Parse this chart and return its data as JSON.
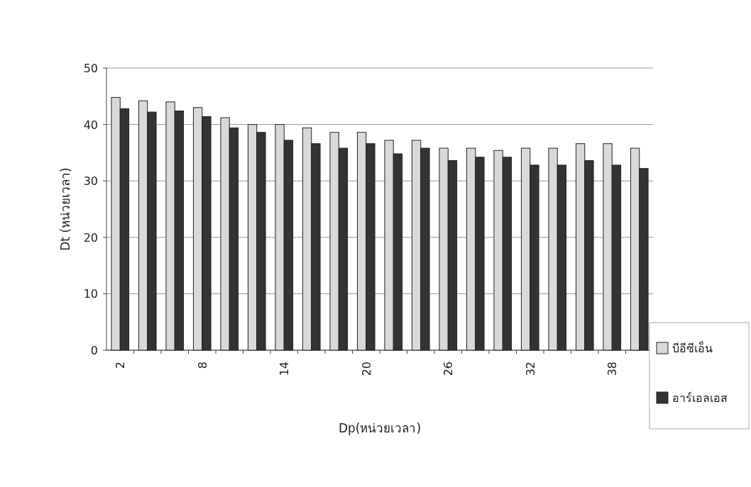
{
  "chart_data": {
    "type": "bar",
    "xlabel": "Dp(หน่วยเวลา)",
    "ylabel": "Dt (หน่วยเวลา)",
    "categories": [
      "2",
      null,
      null,
      "8",
      null,
      null,
      "14",
      null,
      null,
      "20",
      null,
      null,
      "26",
      null,
      null,
      "32",
      null,
      null,
      "38",
      null
    ],
    "series": [
      {
        "name": "บีอีซีเอ็น",
        "color": "#d9d9d9",
        "values": [
          44.8,
          44.2,
          44.0,
          43.0,
          41.2,
          40.0,
          40.0,
          39.4,
          38.6,
          38.6,
          37.2,
          37.2,
          35.8,
          35.8,
          35.4,
          35.8,
          35.8,
          36.6,
          36.6,
          35.8
        ]
      },
      {
        "name": "อาร์เอลเอส",
        "color": "#333333",
        "values": [
          42.8,
          42.2,
          42.4,
          41.4,
          39.4,
          38.6,
          37.2,
          36.6,
          35.8,
          36.6,
          34.8,
          35.8,
          33.6,
          34.2,
          34.2,
          32.8,
          32.8,
          33.6,
          32.8,
          32.2
        ]
      }
    ],
    "ylim": [
      0,
      50
    ],
    "yticks": [
      0,
      10,
      20,
      30,
      40,
      50
    ],
    "grid": "y",
    "legend": "right"
  }
}
